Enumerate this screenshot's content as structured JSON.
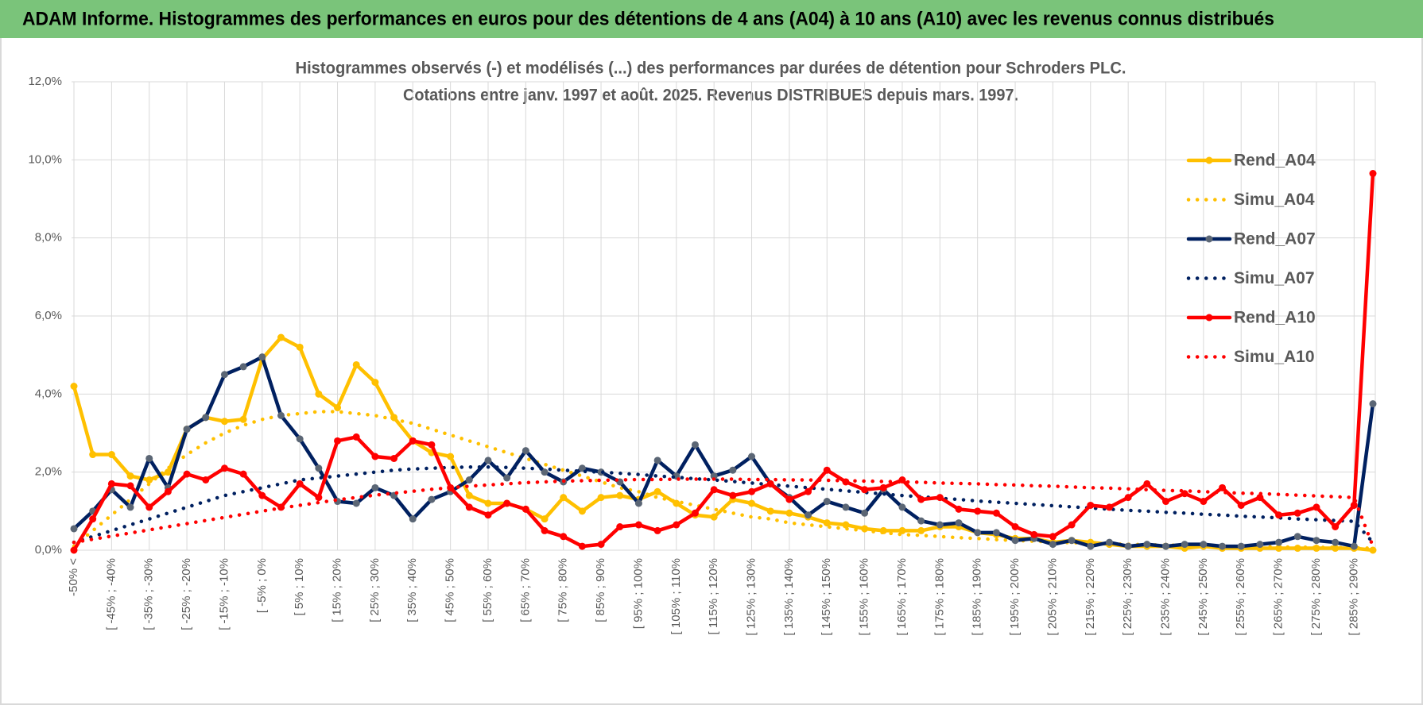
{
  "header": {
    "title": "ADAM Informe. Histogrammes des performances en euros pour des détentions de 4 ans (A04) à 10 ans (A10) avec les revenus connus distribués"
  },
  "chart_data": {
    "type": "line",
    "title": "Histogrammes observés (-) et modélisés (...) des performances par durées de détention pour Schroders PLC.",
    "subtitle": "Cotations entre janv. 1997 et août. 2025. Revenus DISTRIBUES depuis mars. 1997.",
    "categories": [
      "-50% <",
      null,
      "[ -45% ; -40%",
      null,
      "[ -35% ; -30%",
      null,
      "[ -25% ; -20%",
      null,
      "[ -15% ; -10%",
      null,
      "[ -5% ; 0%",
      null,
      "[ 5% ; 10%",
      null,
      "[ 15% ; 20%",
      null,
      "[ 25% ; 30%",
      null,
      "[ 35% ; 40%",
      null,
      "[ 45% ; 50%",
      null,
      "[ 55% ; 60%",
      null,
      "[ 65% ; 70%",
      null,
      "[ 75% ; 80%",
      null,
      "[ 85% ; 90%",
      null,
      "[ 95% ; 100%",
      null,
      "[ 105% ; 110%",
      null,
      "[ 115% ; 120%",
      null,
      "[ 125% ; 130%",
      null,
      "[ 135% ; 140%",
      null,
      "[ 145% ; 150%",
      null,
      "[ 155% ; 160%",
      null,
      "[ 165% ; 170%",
      null,
      "[ 175% ; 180%",
      null,
      "[ 185% ; 190%",
      null,
      "[ 195% ; 200%",
      null,
      "[ 205% ; 210%",
      null,
      "[ 215% ; 220%",
      null,
      "[ 225% ; 230%",
      null,
      "[ 235% ; 240%",
      null,
      "[ 245% ; 250%",
      null,
      "[ 255% ; 260%",
      null,
      "[ 265% ; 270%",
      null,
      "[ 275% ; 280%",
      null,
      "[ 285% ; 290%",
      null
    ],
    "ylim": [
      0,
      12
    ],
    "yticks": [
      {
        "value": 0,
        "label": "0,0%"
      },
      {
        "value": 2,
        "label": "2,0%"
      },
      {
        "value": 4,
        "label": "4,0%"
      },
      {
        "value": 6,
        "label": "6,0%"
      },
      {
        "value": 8,
        "label": "8,0%"
      },
      {
        "value": 10,
        "label": "10,0%"
      },
      {
        "value": 12,
        "label": "12,0%"
      }
    ],
    "grid": true,
    "legend": "right",
    "series": [
      {
        "name": "Rend_A04",
        "color": "#ffc000",
        "style": "solid",
        "markers": true,
        "marker_color": "#ffc000",
        "values": [
          4.2,
          2.45,
          2.45,
          1.9,
          1.8,
          2.0,
          3.1,
          3.4,
          3.3,
          3.35,
          4.9,
          5.45,
          5.2,
          4.0,
          3.65,
          4.75,
          4.3,
          3.4,
          2.8,
          2.5,
          2.4,
          1.4,
          1.2,
          1.2,
          1.05,
          0.8,
          1.35,
          1.0,
          1.35,
          1.4,
          1.3,
          1.5,
          1.2,
          0.9,
          0.85,
          1.3,
          1.2,
          1.0,
          0.95,
          0.85,
          0.7,
          0.65,
          0.55,
          0.5,
          0.5,
          0.5,
          0.6,
          0.6,
          0.45,
          0.4,
          0.3,
          0.3,
          0.2,
          0.25,
          0.2,
          0.15,
          0.1,
          0.1,
          0.1,
          0.05,
          0.1,
          0.05,
          0.05,
          0.05,
          0.05,
          0.05,
          0.05,
          0.05,
          0.05,
          0.0
        ]
      },
      {
        "name": "Simu_A04",
        "color": "#ffc000",
        "style": "dotted",
        "markers": false,
        "values": [
          0.1,
          0.5,
          0.9,
          1.3,
          1.7,
          2.1,
          2.45,
          2.75,
          3.0,
          3.2,
          3.35,
          3.45,
          3.5,
          3.55,
          3.55,
          3.5,
          3.45,
          3.35,
          3.25,
          3.1,
          2.95,
          2.8,
          2.65,
          2.5,
          2.35,
          2.2,
          2.05,
          1.9,
          1.75,
          1.6,
          1.5,
          1.35,
          1.25,
          1.15,
          1.05,
          0.95,
          0.85,
          0.8,
          0.7,
          0.65,
          0.6,
          0.55,
          0.5,
          0.45,
          0.4,
          0.38,
          0.35,
          0.32,
          0.3,
          0.27,
          0.25,
          0.23,
          0.21,
          0.19,
          0.18,
          0.16,
          0.15,
          0.14,
          0.13,
          0.12,
          0.11,
          0.1,
          0.1,
          0.09,
          0.08,
          0.08,
          0.07,
          0.07,
          0.06,
          0.05
        ]
      },
      {
        "name": "Rend_A07",
        "color": "#002060",
        "style": "solid",
        "markers": true,
        "marker_color": "#5b6675",
        "values": [
          0.55,
          1.0,
          1.55,
          1.1,
          2.35,
          1.6,
          3.1,
          3.4,
          4.5,
          4.7,
          4.95,
          3.45,
          2.85,
          2.1,
          1.25,
          1.2,
          1.6,
          1.4,
          0.8,
          1.3,
          1.5,
          1.8,
          2.3,
          1.85,
          2.55,
          2.0,
          1.75,
          2.1,
          2.0,
          1.75,
          1.2,
          2.3,
          1.9,
          2.7,
          1.9,
          2.05,
          2.4,
          1.7,
          1.35,
          0.9,
          1.25,
          1.1,
          0.95,
          1.55,
          1.1,
          0.75,
          0.65,
          0.7,
          0.45,
          0.45,
          0.25,
          0.3,
          0.15,
          0.25,
          0.1,
          0.2,
          0.1,
          0.15,
          0.1,
          0.15,
          0.15,
          0.1,
          0.1,
          0.15,
          0.2,
          0.35,
          0.25,
          0.2,
          0.1,
          3.75
        ]
      },
      {
        "name": "Simu_A07",
        "color": "#002060",
        "style": "dotted",
        "markers": false,
        "values": [
          0.2,
          0.35,
          0.5,
          0.65,
          0.8,
          0.95,
          1.1,
          1.25,
          1.4,
          1.5,
          1.6,
          1.7,
          1.8,
          1.85,
          1.9,
          1.95,
          2.0,
          2.05,
          2.08,
          2.1,
          2.12,
          2.13,
          2.13,
          2.12,
          2.1,
          2.08,
          2.05,
          2.02,
          2.0,
          1.97,
          1.94,
          1.9,
          1.87,
          1.83,
          1.8,
          1.76,
          1.72,
          1.68,
          1.64,
          1.6,
          1.56,
          1.52,
          1.48,
          1.44,
          1.4,
          1.37,
          1.33,
          1.3,
          1.26,
          1.23,
          1.2,
          1.17,
          1.14,
          1.11,
          1.08,
          1.05,
          1.02,
          1.0,
          0.97,
          0.95,
          0.92,
          0.9,
          0.87,
          0.85,
          0.83,
          0.8,
          0.78,
          0.76,
          0.74,
          0.2
        ]
      },
      {
        "name": "Rend_A10",
        "color": "#ff0000",
        "style": "solid",
        "markers": true,
        "marker_color": "#ff0000",
        "values": [
          0.0,
          0.8,
          1.7,
          1.65,
          1.1,
          1.5,
          1.95,
          1.8,
          2.1,
          1.95,
          1.4,
          1.1,
          1.7,
          1.35,
          2.8,
          2.9,
          2.4,
          2.35,
          2.8,
          2.7,
          1.6,
          1.1,
          0.9,
          1.2,
          1.05,
          0.5,
          0.35,
          0.1,
          0.15,
          0.6,
          0.65,
          0.5,
          0.65,
          0.95,
          1.55,
          1.4,
          1.5,
          1.7,
          1.3,
          1.5,
          2.05,
          1.75,
          1.55,
          1.6,
          1.8,
          1.3,
          1.35,
          1.05,
          1.0,
          0.95,
          0.6,
          0.4,
          0.35,
          0.65,
          1.15,
          1.1,
          1.35,
          1.7,
          1.25,
          1.45,
          1.25,
          1.6,
          1.15,
          1.35,
          0.9,
          0.95,
          1.1,
          0.6,
          1.15,
          9.65
        ]
      },
      {
        "name": "Simu_A10",
        "color": "#ff0000",
        "style": "dotted",
        "markers": false,
        "values": [
          0.2,
          0.28,
          0.36,
          0.44,
          0.52,
          0.6,
          0.68,
          0.76,
          0.84,
          0.92,
          1.0,
          1.08,
          1.15,
          1.22,
          1.29,
          1.35,
          1.41,
          1.46,
          1.51,
          1.56,
          1.6,
          1.64,
          1.67,
          1.7,
          1.73,
          1.75,
          1.77,
          1.78,
          1.79,
          1.8,
          1.81,
          1.81,
          1.82,
          1.82,
          1.82,
          1.82,
          1.81,
          1.81,
          1.8,
          1.8,
          1.79,
          1.78,
          1.77,
          1.76,
          1.75,
          1.74,
          1.72,
          1.71,
          1.7,
          1.68,
          1.67,
          1.65,
          1.64,
          1.62,
          1.6,
          1.59,
          1.57,
          1.55,
          1.53,
          1.52,
          1.5,
          1.48,
          1.46,
          1.45,
          1.43,
          1.41,
          1.39,
          1.37,
          1.35,
          0.1
        ]
      }
    ]
  }
}
